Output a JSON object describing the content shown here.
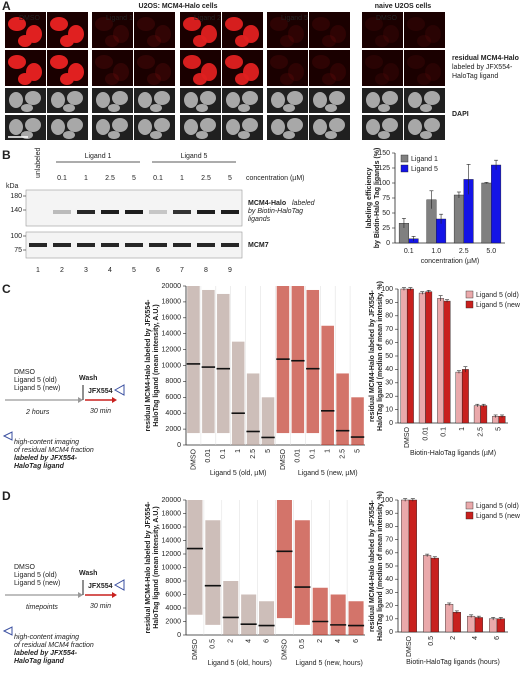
{
  "panel_labels": [
    "A",
    "B",
    "C",
    "D"
  ],
  "panel_a": {
    "title_main": "U2OS: MCM4-Halo cells",
    "title_naive": "naive U2OS cells",
    "conditions": [
      "DMSO",
      "Ligand 1",
      "Ligand 2",
      "Ligand 5",
      "DMSO"
    ],
    "row_label_red": [
      "residual MCM4-Halo",
      "labeled by JFX554-",
      "HaloTag ligand"
    ],
    "row_label_dapi": "DAPI"
  },
  "blot": {
    "groups": [
      "Ligand 1",
      "Ligand 5"
    ],
    "unlabeled": "unlabeled",
    "concentration_label": "concentration (µM)",
    "concentrations": [
      "0.1",
      "1",
      "2.5",
      "5",
      "0.1",
      "1",
      "2.5",
      "5"
    ],
    "kda": "kDa",
    "markers_top": [
      "180",
      "140"
    ],
    "markers_bottom": [
      "100",
      "75"
    ],
    "band_label": "MCM4-Halo",
    "band_label_note": [
      "labeled",
      "by Biotin-HaloTag",
      "ligands"
    ],
    "loading_label": "MCM7",
    "lanes": [
      "1",
      "2",
      "3",
      "4",
      "5",
      "6",
      "7",
      "8",
      "9"
    ]
  },
  "schematic_c": {
    "treatments": [
      "DMSO",
      "Ligand 5 (old)",
      "Ligand 5 (new)"
    ],
    "wash": "Wash",
    "dye": "JFX554",
    "time1": "2 hours",
    "time2": "30 min",
    "note": [
      "high-content imaging",
      "of residual MCM4 fraction",
      "labeled by JFX554-",
      "HaloTag ligand"
    ]
  },
  "schematic_d": {
    "treatments": [
      "DMSO",
      "Ligand 5 (old)",
      "Ligand 5 (new)"
    ],
    "wash": "Wash",
    "dye": "JFX554",
    "time1": "timepoints",
    "time2": "30 min",
    "note": [
      "high-content imaging",
      "of residual MCM4 fraction",
      "labeled by JFX554-",
      "HaloTag ligand"
    ]
  },
  "chart_data": [
    {
      "type": "bar",
      "categories": [
        "0.1",
        "1.0",
        "2.5",
        "5.0"
      ],
      "series": [
        {
          "name": "Ligand 1",
          "color": "#808080",
          "values": [
            33,
            72,
            80,
            100
          ],
          "errors": [
            8,
            15,
            5,
            1
          ]
        },
        {
          "name": "Ligand 5",
          "color": "#1414e6",
          "values": [
            7,
            40,
            106,
            130
          ],
          "errors": [
            4,
            8,
            25,
            8
          ]
        }
      ],
      "ylim": [
        0,
        150
      ],
      "yticks": [
        0,
        25,
        50,
        75,
        100,
        125,
        150
      ],
      "ylabel": [
        "labeling efficiency",
        "by Biotin-Halo Tag ligands (%)"
      ],
      "xlabel": "concentration (µM)",
      "legend": "upper left"
    },
    {
      "type": "strip",
      "categories": [
        "DMSO",
        "0.01",
        "0.1",
        "1",
        "2.5",
        "5"
      ],
      "series": [
        {
          "name": "Ligand 5 (old, µM)",
          "color": "#b8a29b",
          "values": [
            10200,
            9800,
            9600,
            4000,
            1700,
            950
          ],
          "ranges": [
            [
              1500,
              20000
            ],
            [
              1500,
              19500
            ],
            [
              1500,
              19000
            ],
            [
              0,
              13000
            ],
            [
              0,
              9000
            ],
            [
              0,
              6000
            ]
          ]
        },
        {
          "name": "Ligand 5 (new, µM)",
          "color": "#c0392b",
          "values": [
            10800,
            10600,
            9600,
            4300,
            1800,
            1000
          ],
          "ranges": [
            [
              1500,
              20000
            ],
            [
              1500,
              20000
            ],
            [
              1500,
              19500
            ],
            [
              0,
              15000
            ],
            [
              0,
              9000
            ],
            [
              0,
              6000
            ]
          ]
        }
      ],
      "ylim": [
        0,
        20000
      ],
      "yticks": [
        0,
        2000,
        4000,
        6000,
        8000,
        10000,
        12000,
        14000,
        16000,
        18000,
        20000
      ],
      "ylabel": [
        "residual MCM4-Halo labeled by JFX554-",
        "HaloTag ligand (mean intensity, A.U.)"
      ]
    },
    {
      "type": "bar",
      "categories": [
        "DMSO",
        "0.01",
        "0.1",
        "1",
        "2.5",
        "5"
      ],
      "series": [
        {
          "name": "Ligand 5 (old)",
          "color": "#eaa9ab",
          "values": [
            100,
            97,
            93,
            38,
            13,
            5
          ],
          "errors": [
            1,
            1,
            2,
            1,
            1,
            1
          ]
        },
        {
          "name": "Ligand 5 (new)",
          "color": "#c8201e",
          "values": [
            100,
            98,
            91,
            40,
            13,
            5
          ],
          "errors": [
            1,
            1,
            1,
            2,
            1,
            1
          ]
        }
      ],
      "ylim": [
        0,
        100
      ],
      "yticks": [
        0,
        10,
        20,
        30,
        40,
        50,
        60,
        70,
        80,
        90,
        100
      ],
      "ylabel": [
        "residual MCM4-Halo labeled by JFX554-",
        "HaloTag ligand (median of mean intensity, %)"
      ],
      "xlabel": "Biotin-HaloTag ligands (µM)",
      "legend": "upper right"
    },
    {
      "type": "strip",
      "categories": [
        "DMSO",
        "0.5",
        "2",
        "4",
        "6"
      ],
      "series": [
        {
          "name": "Ligand 5 (old, hours)",
          "color": "#b8a29b",
          "values": [
            12800,
            7300,
            2600,
            1600,
            1400
          ],
          "ranges": [
            [
              3000,
              20000
            ],
            [
              1500,
              17000
            ],
            [
              0,
              8000
            ],
            [
              0,
              6000
            ],
            [
              0,
              5000
            ]
          ]
        },
        {
          "name": "Ligand 5 (new, hours)",
          "color": "#c0392b",
          "values": [
            12400,
            7100,
            2000,
            1500,
            1400
          ],
          "ranges": [
            [
              2500,
              20000
            ],
            [
              1500,
              17000
            ],
            [
              0,
              7000
            ],
            [
              0,
              6000
            ],
            [
              0,
              5000
            ]
          ]
        }
      ],
      "ylim": [
        0,
        20000
      ],
      "yticks": [
        0,
        2000,
        4000,
        6000,
        8000,
        10000,
        12000,
        14000,
        16000,
        18000,
        20000
      ],
      "ylabel": [
        "residual MCM4-Halo labeled by JFX554-",
        "HaloTag ligand (mean intensity, A.U.)"
      ]
    },
    {
      "type": "bar",
      "categories": [
        "DMSO",
        "0.5",
        "2",
        "4",
        "6"
      ],
      "series": [
        {
          "name": "Ligand 5 (old)",
          "color": "#eaa9ab",
          "values": [
            100,
            58,
            21,
            12,
            10
          ],
          "errors": [
            1,
            1,
            1,
            1,
            1
          ]
        },
        {
          "name": "Ligand 5 (new)",
          "color": "#c8201e",
          "values": [
            100,
            56,
            15,
            11,
            10
          ],
          "errors": [
            1,
            1,
            1,
            1,
            1
          ]
        }
      ],
      "ylim": [
        0,
        100
      ],
      "yticks": [
        0,
        10,
        20,
        30,
        40,
        50,
        60,
        70,
        80,
        90,
        100
      ],
      "ylabel": [
        "residual MCM4-Halo labeled by JFX554-",
        "HaloTag ligand (median of mean intensity, %)"
      ],
      "xlabel": "Biotin-HaloTag ligands (hours)",
      "legend": "upper right"
    }
  ]
}
